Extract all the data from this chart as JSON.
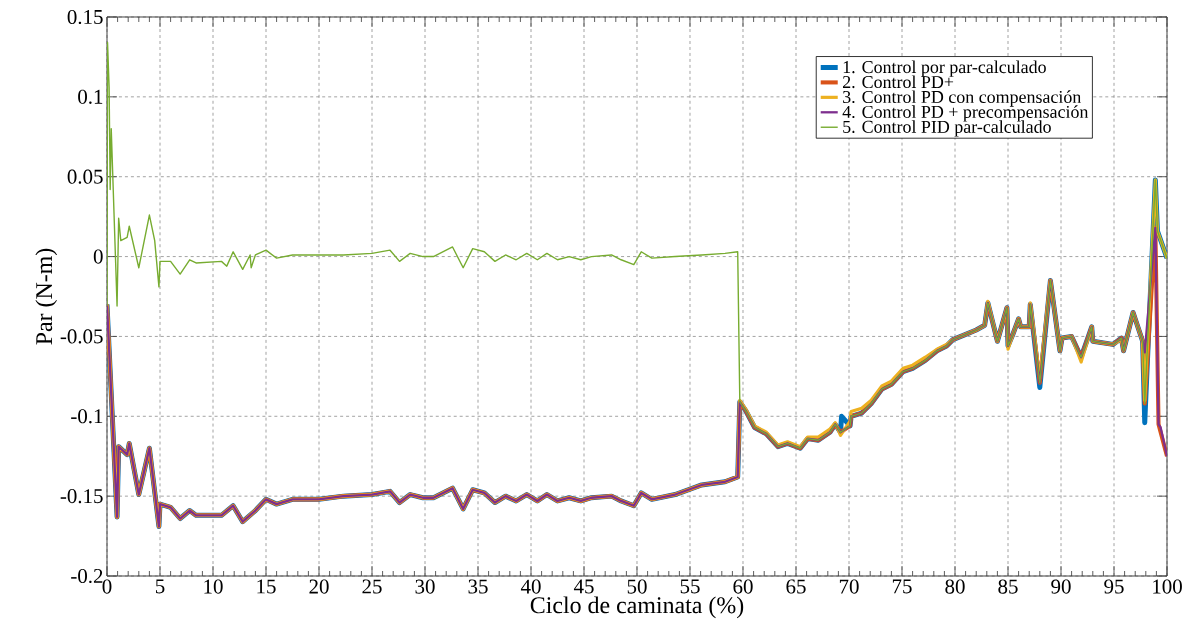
{
  "chart_data": {
    "type": "line",
    "xlabel": "Ciclo de caminata (%)",
    "ylabel": "Par (N-m)",
    "xlim": [
      0,
      100
    ],
    "ylim": [
      -0.2,
      0.15
    ],
    "xticks": [
      0,
      5,
      10,
      15,
      20,
      25,
      30,
      35,
      40,
      45,
      50,
      55,
      60,
      65,
      70,
      75,
      80,
      85,
      90,
      95,
      100
    ],
    "yticks": [
      -0.2,
      -0.15,
      -0.1,
      -0.05,
      0,
      0.05,
      0.1,
      0.15
    ],
    "grid": true,
    "legend": "top right",
    "line_style": "solid",
    "marker": "none",
    "series": [
      {
        "name": "1. Control por par-calculado",
        "color": "#0072bd",
        "x": [
          0,
          0.95,
          1.1,
          1.9,
          2.1,
          3.0,
          4.0,
          4.9,
          5.0,
          6.0,
          6.9,
          7.8,
          8.4,
          10.8,
          11.9,
          12.8,
          14.0,
          15.0,
          16.0,
          17.5,
          20.0,
          22.3,
          25.0,
          26.7,
          27.6,
          28.6,
          29.8,
          30.8,
          32.6,
          33.6,
          34.5,
          35.6,
          36.6,
          37.6,
          38.6,
          39.6,
          40.6,
          41.5,
          42.5,
          43.6,
          44.7,
          45.7,
          47.6,
          48.5,
          49.7,
          50.4,
          51.4,
          53.6,
          56.1,
          58.3,
          59.5,
          59.7,
          60.3,
          61.1,
          62.2,
          63.3,
          64.2,
          65.4,
          66.1,
          67.1,
          68.2,
          68.7,
          69.2,
          69.3,
          70.1,
          70.2,
          71.2,
          72.1,
          73.1,
          74.0,
          75.1,
          76.0,
          77.2,
          78.3,
          79.2,
          79.8,
          80.9,
          82.0,
          82.8,
          83.1,
          84.0,
          84.9,
          85.0,
          85.5,
          86.0,
          86.2,
          87.0,
          87.1,
          88.0,
          89.0,
          89.9,
          90.1,
          91.0,
          91.9,
          92.9,
          93.0,
          94.9,
          95.7,
          95.9,
          96.8,
          97.7,
          97.9,
          98.9,
          99.1,
          100
        ],
        "values": [
          -0.03,
          -0.163,
          -0.119,
          -0.124,
          -0.117,
          -0.149,
          -0.12,
          -0.169,
          -0.155,
          -0.157,
          -0.164,
          -0.159,
          -0.162,
          -0.162,
          -0.156,
          -0.166,
          -0.159,
          -0.152,
          -0.155,
          -0.152,
          -0.152,
          -0.15,
          -0.149,
          -0.147,
          -0.154,
          -0.149,
          -0.151,
          -0.151,
          -0.145,
          -0.158,
          -0.146,
          -0.148,
          -0.154,
          -0.15,
          -0.153,
          -0.149,
          -0.153,
          -0.149,
          -0.153,
          -0.151,
          -0.153,
          -0.151,
          -0.15,
          -0.153,
          -0.156,
          -0.148,
          -0.152,
          -0.149,
          -0.143,
          -0.141,
          -0.138,
          -0.091,
          -0.097,
          -0.107,
          -0.111,
          -0.119,
          -0.117,
          -0.12,
          -0.114,
          -0.115,
          -0.11,
          -0.105,
          -0.11,
          -0.1,
          -0.106,
          -0.1,
          -0.098,
          -0.092,
          -0.083,
          -0.08,
          -0.072,
          -0.07,
          -0.065,
          -0.059,
          -0.056,
          -0.052,
          -0.049,
          -0.046,
          -0.043,
          -0.029,
          -0.053,
          -0.032,
          -0.056,
          -0.048,
          -0.039,
          -0.044,
          -0.044,
          -0.03,
          -0.082,
          -0.015,
          -0.059,
          -0.051,
          -0.05,
          -0.063,
          -0.044,
          -0.053,
          -0.055,
          -0.051,
          -0.059,
          -0.035,
          -0.053,
          -0.104,
          0.048,
          0.016,
          -0.001
        ]
      },
      {
        "name": "2. Control PD+",
        "color": "#d95319",
        "x": [
          0,
          0.95,
          1.1,
          1.9,
          2.1,
          3.0,
          4.0,
          4.9,
          5.0,
          6.0,
          6.9,
          7.8,
          8.4,
          10.8,
          11.9,
          12.8,
          14.0,
          15.0,
          16.0,
          17.5,
          20.0,
          22.3,
          25.0,
          26.7,
          27.6,
          28.6,
          29.8,
          30.8,
          32.6,
          33.6,
          34.5,
          35.6,
          36.6,
          37.6,
          38.6,
          39.6,
          40.6,
          41.5,
          42.5,
          43.6,
          44.7,
          45.7,
          47.6,
          48.5,
          49.7,
          50.4,
          51.4,
          53.6,
          56.1,
          58.3,
          59.5,
          59.7,
          60.3,
          61.1,
          62.2,
          63.3,
          64.2,
          65.4,
          66.1,
          67.1,
          68.2,
          68.7,
          69.2,
          70.1,
          70.2,
          71.2,
          72.1,
          73.1,
          74.0,
          75.1,
          76.0,
          77.2,
          78.3,
          79.2,
          79.8,
          80.9,
          82.0,
          82.8,
          83.1,
          84.0,
          84.9,
          85.0,
          85.5,
          86.0,
          86.2,
          87.0,
          87.1,
          88.0,
          89.0,
          89.9,
          90.1,
          91.0,
          91.9,
          92.9,
          93.0,
          94.9,
          95.7,
          95.9,
          96.8,
          97.7,
          97.9,
          98.9,
          99.2,
          100
        ],
        "values": [
          -0.03,
          -0.163,
          -0.119,
          -0.124,
          -0.117,
          -0.149,
          -0.12,
          -0.169,
          -0.155,
          -0.157,
          -0.164,
          -0.159,
          -0.162,
          -0.162,
          -0.156,
          -0.166,
          -0.159,
          -0.152,
          -0.155,
          -0.152,
          -0.152,
          -0.15,
          -0.149,
          -0.147,
          -0.154,
          -0.149,
          -0.151,
          -0.151,
          -0.145,
          -0.158,
          -0.146,
          -0.148,
          -0.154,
          -0.15,
          -0.153,
          -0.149,
          -0.153,
          -0.149,
          -0.153,
          -0.151,
          -0.153,
          -0.151,
          -0.15,
          -0.153,
          -0.156,
          -0.148,
          -0.152,
          -0.149,
          -0.143,
          -0.141,
          -0.138,
          -0.091,
          -0.097,
          -0.107,
          -0.111,
          -0.119,
          -0.117,
          -0.12,
          -0.114,
          -0.115,
          -0.11,
          -0.105,
          -0.11,
          -0.106,
          -0.1,
          -0.098,
          -0.092,
          -0.083,
          -0.08,
          -0.072,
          -0.07,
          -0.065,
          -0.059,
          -0.056,
          -0.052,
          -0.049,
          -0.046,
          -0.043,
          -0.029,
          -0.053,
          -0.032,
          -0.056,
          -0.048,
          -0.039,
          -0.044,
          -0.044,
          -0.03,
          -0.079,
          -0.015,
          -0.059,
          -0.051,
          -0.05,
          -0.063,
          -0.044,
          -0.053,
          -0.055,
          -0.051,
          -0.059,
          -0.035,
          -0.053,
          -0.092,
          0.018,
          -0.105,
          -0.125
        ]
      },
      {
        "name": "3. Control PD con compensación",
        "color": "#edb120",
        "x": [
          0,
          0.95,
          1.1,
          1.9,
          2.1,
          3.0,
          4.0,
          4.9,
          5.0,
          6.0,
          6.9,
          7.8,
          8.4,
          10.8,
          11.9,
          12.8,
          14.0,
          15.0,
          16.0,
          17.5,
          20.0,
          22.3,
          25.0,
          26.7,
          27.6,
          28.6,
          29.8,
          30.8,
          32.6,
          33.6,
          34.5,
          35.6,
          36.6,
          37.6,
          38.6,
          39.6,
          40.6,
          41.5,
          42.5,
          43.6,
          44.7,
          45.7,
          47.6,
          48.5,
          49.7,
          50.4,
          51.4,
          53.6,
          56.1,
          58.3,
          59.5,
          59.7,
          60.3,
          61.1,
          62.2,
          63.3,
          64.2,
          65.4,
          66.1,
          67.1,
          68.2,
          68.7,
          69.2,
          70.1,
          70.2,
          71.2,
          72.1,
          73.1,
          74.0,
          75.1,
          76.0,
          77.2,
          78.3,
          79.2,
          79.8,
          80.9,
          82.0,
          82.8,
          83.1,
          84.0,
          84.9,
          85.0,
          85.5,
          86.0,
          86.2,
          87.0,
          87.1,
          88.0,
          89.0,
          89.9,
          90.1,
          91.0,
          91.9,
          92.9,
          93.0,
          94.9,
          95.7,
          95.9,
          96.8,
          97.7,
          97.9,
          98.9,
          99.1,
          100
        ],
        "values": [
          -0.03,
          -0.163,
          -0.119,
          -0.124,
          -0.117,
          -0.149,
          -0.12,
          -0.169,
          -0.155,
          -0.157,
          -0.164,
          -0.159,
          -0.162,
          -0.162,
          -0.156,
          -0.166,
          -0.159,
          -0.152,
          -0.155,
          -0.152,
          -0.152,
          -0.15,
          -0.149,
          -0.147,
          -0.154,
          -0.149,
          -0.151,
          -0.151,
          -0.145,
          -0.158,
          -0.146,
          -0.148,
          -0.154,
          -0.15,
          -0.153,
          -0.149,
          -0.153,
          -0.149,
          -0.153,
          -0.151,
          -0.153,
          -0.151,
          -0.15,
          -0.153,
          -0.156,
          -0.148,
          -0.152,
          -0.149,
          -0.143,
          -0.141,
          -0.138,
          -0.09,
          -0.096,
          -0.106,
          -0.11,
          -0.118,
          -0.116,
          -0.119,
          -0.113,
          -0.113,
          -0.108,
          -0.104,
          -0.112,
          -0.103,
          -0.097,
          -0.095,
          -0.09,
          -0.081,
          -0.078,
          -0.07,
          -0.068,
          -0.063,
          -0.058,
          -0.055,
          -0.052,
          -0.049,
          -0.046,
          -0.043,
          -0.028,
          -0.053,
          -0.032,
          -0.058,
          -0.048,
          -0.039,
          -0.044,
          -0.044,
          -0.029,
          -0.076,
          -0.015,
          -0.059,
          -0.051,
          -0.05,
          -0.066,
          -0.044,
          -0.053,
          -0.055,
          -0.052,
          -0.059,
          -0.035,
          -0.053,
          -0.09,
          0.048,
          0.016,
          -0.001
        ]
      },
      {
        "name": "4. Control PD + precompensación",
        "color": "#7e2f8e",
        "x": [
          0,
          0.95,
          1.1,
          1.9,
          2.1,
          3.0,
          4.0,
          4.9,
          5.0,
          6.0,
          6.9,
          7.8,
          8.4,
          10.8,
          11.9,
          12.8,
          14.0,
          15.0,
          16.0,
          17.5,
          20.0,
          22.3,
          25.0,
          26.7,
          27.6,
          28.6,
          29.8,
          30.8,
          32.6,
          33.6,
          34.5,
          35.6,
          36.6,
          37.6,
          38.6,
          39.6,
          40.6,
          41.5,
          42.5,
          43.6,
          44.7,
          45.7,
          47.6,
          48.5,
          49.7,
          50.4,
          51.4,
          53.6,
          56.1,
          58.3,
          59.5,
          59.7,
          60.3,
          61.1,
          62.2,
          63.3,
          64.2,
          65.4,
          66.1,
          67.1,
          68.2,
          68.7,
          69.2,
          70.1,
          70.2,
          71.2,
          72.1,
          73.1,
          74.0,
          75.1,
          76.0,
          77.2,
          78.3,
          79.2,
          79.8,
          80.9,
          82.0,
          82.8,
          83.1,
          84.0,
          84.9,
          85.0,
          85.5,
          86.0,
          86.2,
          87.0,
          87.1,
          88.0,
          89.0,
          89.9,
          90.1,
          91.0,
          91.9,
          92.9,
          93.0,
          94.9,
          95.7,
          95.9,
          96.8,
          97.7,
          97.9,
          98.9,
          99.2,
          99.4,
          100
        ],
        "values": [
          -0.03,
          -0.163,
          -0.119,
          -0.124,
          -0.117,
          -0.149,
          -0.12,
          -0.169,
          -0.155,
          -0.157,
          -0.164,
          -0.159,
          -0.162,
          -0.162,
          -0.156,
          -0.166,
          -0.159,
          -0.152,
          -0.155,
          -0.152,
          -0.152,
          -0.15,
          -0.149,
          -0.147,
          -0.154,
          -0.149,
          -0.151,
          -0.151,
          -0.145,
          -0.158,
          -0.146,
          -0.148,
          -0.154,
          -0.15,
          -0.153,
          -0.149,
          -0.153,
          -0.149,
          -0.153,
          -0.151,
          -0.153,
          -0.151,
          -0.15,
          -0.153,
          -0.156,
          -0.148,
          -0.152,
          -0.149,
          -0.143,
          -0.141,
          -0.138,
          -0.091,
          -0.097,
          -0.107,
          -0.111,
          -0.119,
          -0.117,
          -0.12,
          -0.114,
          -0.115,
          -0.11,
          -0.105,
          -0.11,
          -0.106,
          -0.1,
          -0.098,
          -0.092,
          -0.083,
          -0.08,
          -0.072,
          -0.07,
          -0.065,
          -0.059,
          -0.056,
          -0.052,
          -0.049,
          -0.046,
          -0.043,
          -0.029,
          -0.053,
          -0.032,
          -0.056,
          -0.048,
          -0.039,
          -0.044,
          -0.044,
          -0.03,
          -0.079,
          -0.015,
          -0.059,
          -0.051,
          -0.05,
          -0.063,
          -0.044,
          -0.053,
          -0.055,
          -0.051,
          -0.059,
          -0.035,
          -0.053,
          -0.06,
          0.018,
          -0.105,
          -0.107,
          -0.125
        ]
      },
      {
        "name": "5. Control PID par-calculado",
        "color": "#77ac30",
        "x": [
          0,
          0.05,
          0.2,
          0.3,
          0.4,
          0.95,
          1.1,
          1.3,
          1.9,
          2.1,
          3.0,
          4.0,
          4.5,
          4.9,
          5.0,
          6.0,
          6.9,
          7.8,
          8.4,
          10.8,
          11.3,
          11.9,
          12.8,
          13.5,
          13.6,
          14.0,
          15.0,
          16.0,
          17.5,
          20.0,
          22.3,
          25.0,
          26.7,
          27.6,
          28.6,
          29.8,
          30.8,
          32.6,
          33.6,
          34.5,
          35.6,
          36.6,
          37.6,
          38.6,
          39.6,
          40.6,
          41.5,
          42.5,
          43.6,
          44.7,
          45.7,
          47.6,
          48.5,
          49.7,
          50.4,
          51.4,
          53.6,
          56.1,
          58.3,
          59.5,
          59.7,
          60.3,
          61.1,
          62.2,
          63.3,
          64.2,
          65.4,
          66.1,
          67.1,
          68.2,
          68.7,
          69.2,
          70.1,
          70.2,
          71.2,
          72.1,
          73.1,
          74.0,
          75.1,
          76.0,
          77.2,
          78.3,
          79.2,
          79.8,
          80.9,
          82.0,
          82.8,
          83.1,
          84.0,
          84.9,
          85.0,
          85.5,
          86.0,
          86.2,
          87.0,
          87.1,
          88.0,
          89.0,
          89.9,
          90.1,
          91.0,
          91.9,
          92.9,
          93.0,
          94.9,
          95.7,
          95.9,
          96.8,
          97.7,
          97.9,
          98.9,
          99.1,
          100
        ],
        "values": [
          -0.031,
          0.134,
          0.106,
          0.042,
          0.08,
          -0.031,
          0.024,
          0.01,
          0.012,
          0.019,
          -0.007,
          0.026,
          0.01,
          -0.019,
          -0.003,
          -0.003,
          -0.011,
          -0.002,
          -0.004,
          -0.003,
          -0.006,
          0.003,
          -0.008,
          0.001,
          -0.007,
          0.001,
          0.004,
          -0.001,
          0.001,
          0.001,
          0.001,
          0.002,
          0.004,
          -0.003,
          0.002,
          0.0,
          0.0,
          0.006,
          -0.007,
          0.005,
          0.003,
          -0.003,
          0.001,
          -0.002,
          0.002,
          -0.002,
          0.002,
          -0.002,
          0.0,
          -0.002,
          0.0,
          0.001,
          -0.002,
          -0.005,
          0.003,
          -0.001,
          0.0,
          0.001,
          0.002,
          0.003,
          -0.091,
          -0.097,
          -0.107,
          -0.111,
          -0.119,
          -0.117,
          -0.12,
          -0.114,
          -0.115,
          -0.11,
          -0.105,
          -0.11,
          -0.106,
          -0.1,
          -0.098,
          -0.092,
          -0.083,
          -0.08,
          -0.072,
          -0.07,
          -0.065,
          -0.059,
          -0.056,
          -0.052,
          -0.049,
          -0.046,
          -0.043,
          -0.029,
          -0.053,
          -0.032,
          -0.056,
          -0.048,
          -0.039,
          -0.044,
          -0.044,
          -0.03,
          -0.079,
          -0.015,
          -0.059,
          -0.051,
          -0.05,
          -0.063,
          -0.044,
          -0.053,
          -0.055,
          -0.051,
          -0.059,
          -0.035,
          -0.053,
          -0.092,
          0.048,
          0.016,
          -0.001
        ]
      }
    ]
  }
}
